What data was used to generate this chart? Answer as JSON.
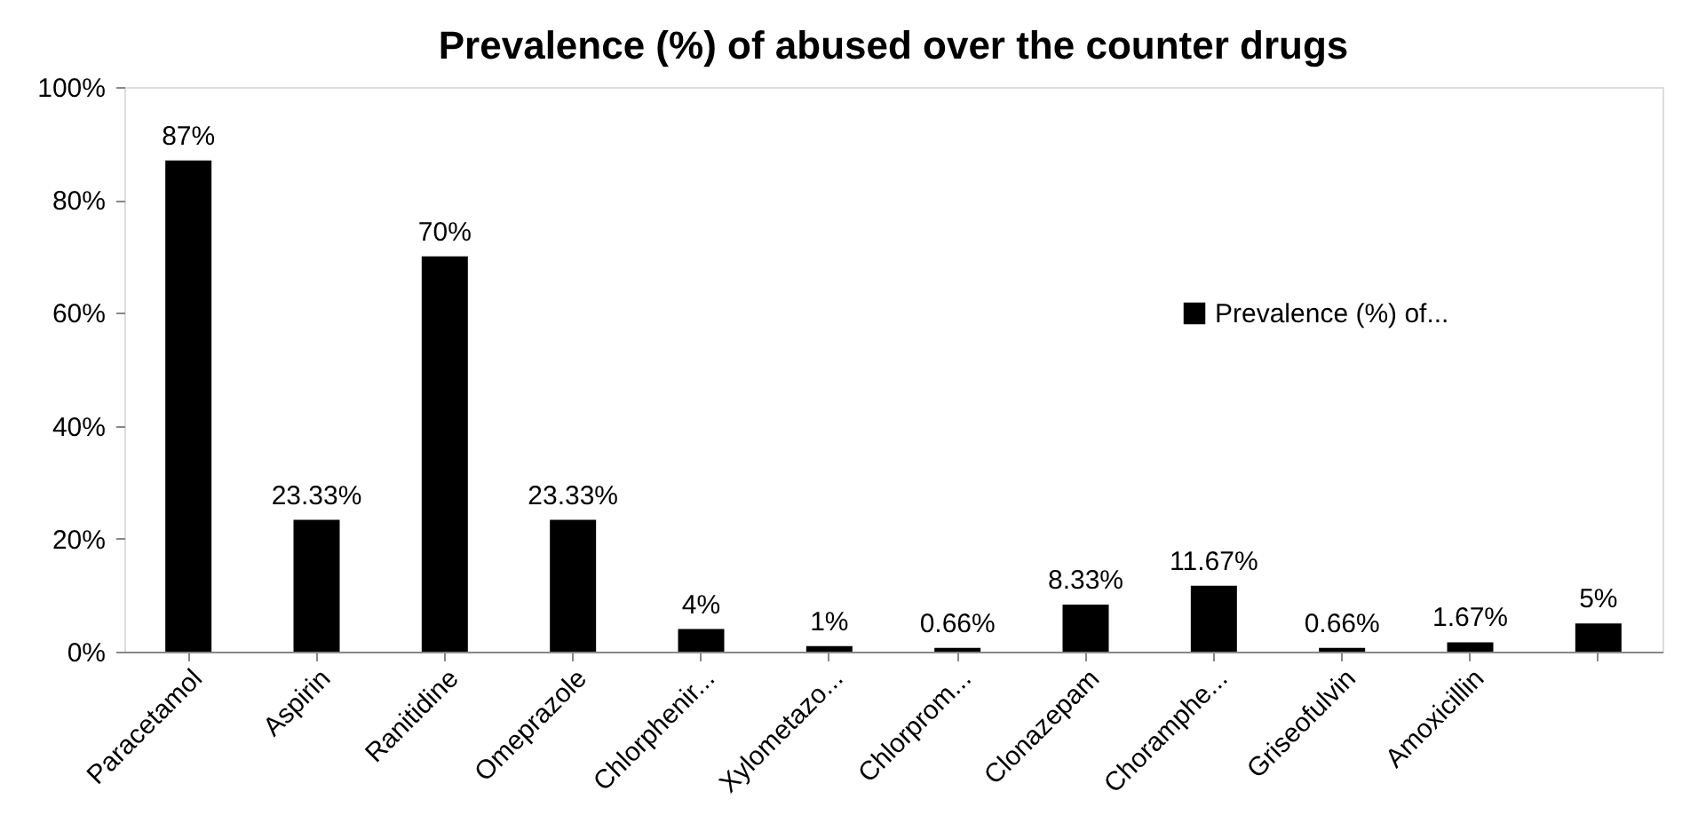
{
  "chart_data": {
    "type": "bar",
    "title": "Prevalence (%) of abused over the counter drugs",
    "categories": [
      "Paracetamol",
      "Aspirin",
      "Ranitidine",
      "Omeprazole",
      "Chlorphenir...",
      "Xylometazo...",
      "Chlorprom...",
      "Clonazepam",
      "Choramphe...",
      "Griseofulvin",
      "Amoxicillin",
      null
    ],
    "series": [
      {
        "name": "Prevalence (%) of...",
        "color": "#000000",
        "values": [
          87,
          23.33,
          70,
          23.33,
          4,
          1,
          0.66,
          8.33,
          11.67,
          0.66,
          1.67,
          5
        ],
        "value_labels": [
          "87%",
          "23.33%",
          "70%",
          "23.33%",
          "4%",
          "1%",
          "0.66%",
          "8.33%",
          "11.67%",
          "0.66%",
          "1.67%",
          "5%"
        ]
      }
    ],
    "ylim": [
      0,
      100
    ],
    "yticks": [
      {
        "value": 0,
        "label": "0%"
      },
      {
        "value": 20,
        "label": "20%"
      },
      {
        "value": 40,
        "label": "40%"
      },
      {
        "value": 60,
        "label": "60%"
      },
      {
        "value": 80,
        "label": "80%"
      },
      {
        "value": 100,
        "label": "100%"
      }
    ],
    "grid": false,
    "legend": "top right"
  }
}
